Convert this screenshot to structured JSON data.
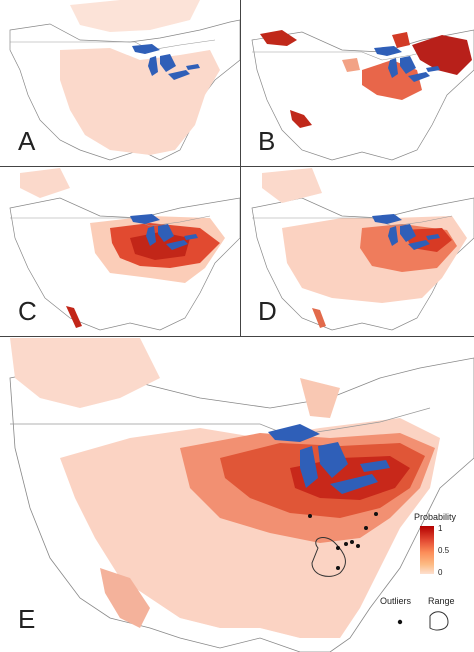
{
  "panels": [
    {
      "id": "A",
      "label": "A"
    },
    {
      "id": "B",
      "label": "B"
    },
    {
      "id": "C",
      "label": "C"
    },
    {
      "id": "D",
      "label": "D"
    },
    {
      "id": "E",
      "label": "E"
    }
  ],
  "legend": {
    "title": "Probability",
    "ticks": [
      "1",
      "0.5",
      "0"
    ],
    "gradient": [
      "#b30000",
      "#e34a33",
      "#fc8d59",
      "#fdbb84",
      "#fde0d0"
    ],
    "outliers_label": "Outliers",
    "range_label": "Range"
  },
  "colors": {
    "lake": "#2f5fb8",
    "border": "#9a9a9a",
    "coast": "#777777",
    "low": "#f9d3c5",
    "mid": "#ef7a5a",
    "high": "#c8281a"
  }
}
